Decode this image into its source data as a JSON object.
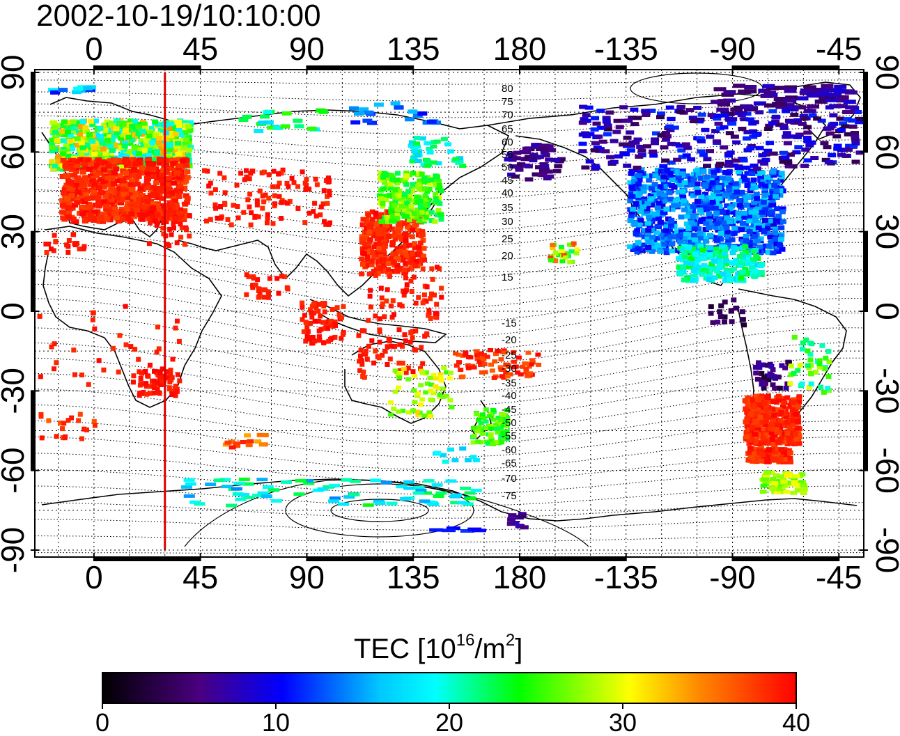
{
  "title": "2002-10-19/10:10:00",
  "map": {
    "projection": "equirectangular",
    "lon_ticks": [
      "0",
      "45",
      "90",
      "135",
      "180",
      "-135",
      "-90",
      "-45"
    ],
    "lat_ticks": [
      "90",
      "60",
      "30",
      "0",
      "-30",
      "-60",
      "-90"
    ],
    "graticule_step_degrees": 15,
    "marker_meridian_lon": 30,
    "marker_color": "#dd0000",
    "contour_labels": [
      "80",
      "75",
      "70",
      "65",
      "60",
      "55",
      "50",
      "45",
      "40",
      "35",
      "30",
      "25",
      "20",
      "15",
      "-15",
      "-20",
      "-25",
      "-30",
      "-35",
      "-40",
      "-45",
      "-50",
      "-55",
      "-60",
      "-65",
      "-70",
      "-75"
    ]
  },
  "colorbar": {
    "title_prefix": "TEC  [10",
    "title_exp1": "16",
    "title_mid": "/m",
    "title_exp2": "2",
    "title_suffix": "]",
    "min": 0,
    "max": 40,
    "ticks": [
      "0",
      "10",
      "20",
      "30",
      "40"
    ],
    "colors": [
      "#000000",
      "#4a0080",
      "#0000ff",
      "#00ffff",
      "#00ff00",
      "#ffff00",
      "#ff8800",
      "#ff0000"
    ]
  }
}
